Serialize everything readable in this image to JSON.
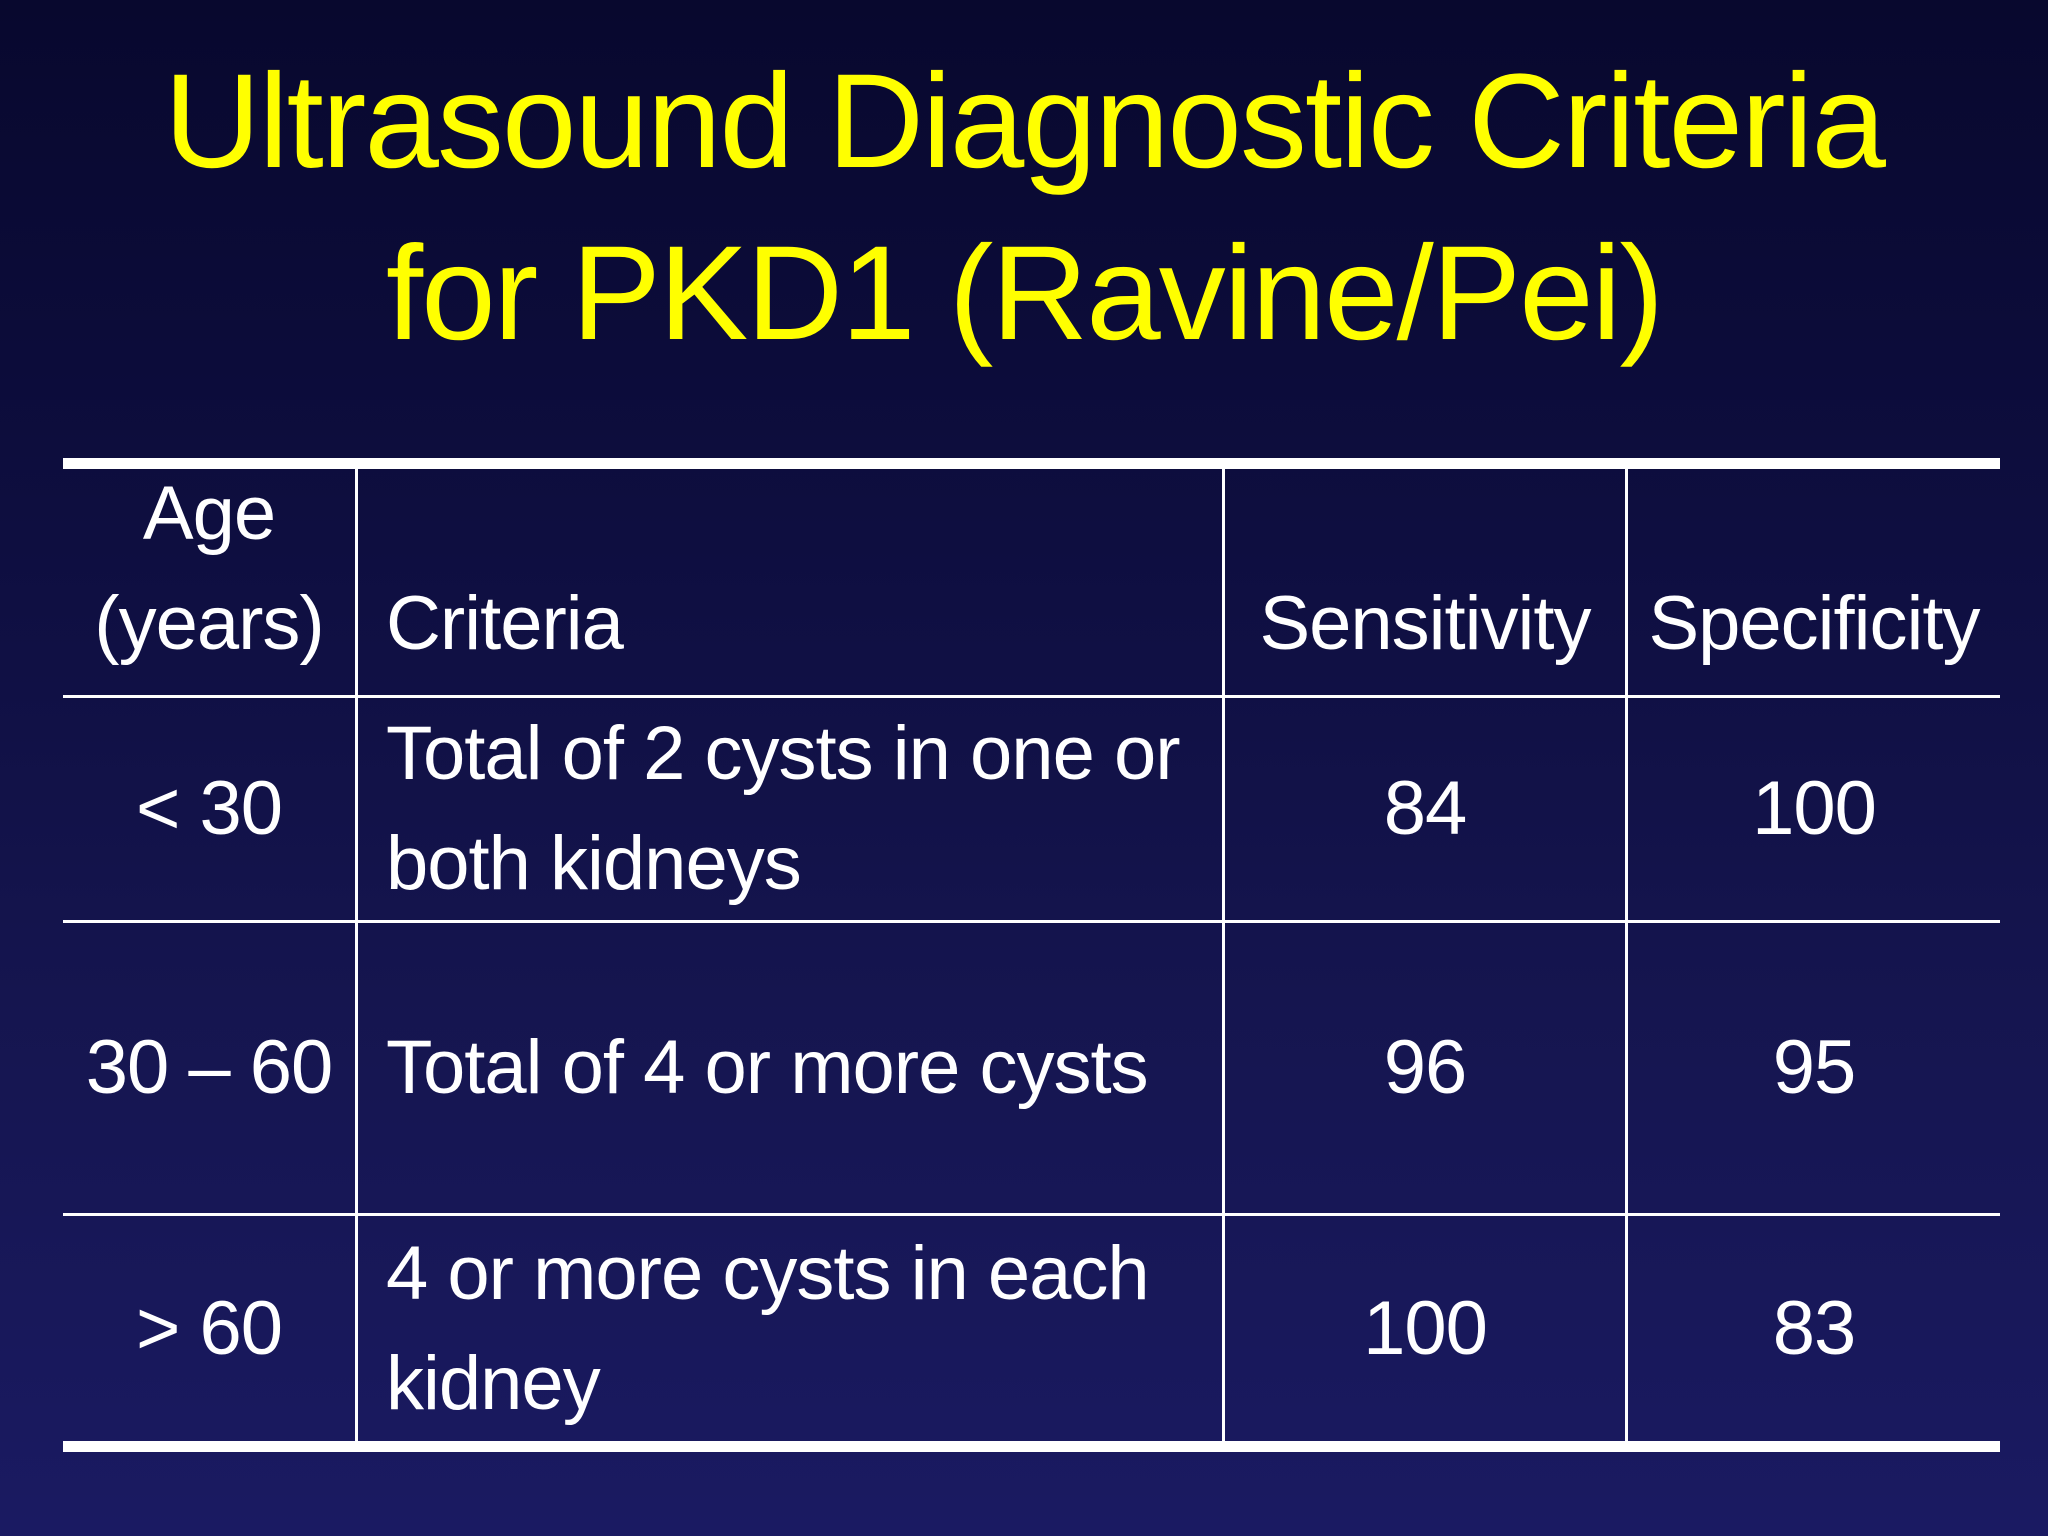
{
  "title": {
    "line1": "Ultrasound Diagnostic Criteria",
    "line2": "for PKD1 (Ravine/Pei)"
  },
  "table": {
    "headers": {
      "age_line1": "Age",
      "age_line2": "(years)",
      "criteria": "Criteria",
      "sensitivity": "Sensitivity",
      "specificity": "Specificity"
    },
    "rows": [
      {
        "age": "< 30",
        "criteria": "Total of 2 cysts in one or both kidneys",
        "sensitivity": "84",
        "specificity": "100"
      },
      {
        "age": "30 – 60",
        "criteria": "Total of 4 or more cysts",
        "sensitivity": "96",
        "specificity": "95"
      },
      {
        "age": "> 60",
        "criteria": "4 or more cysts in each kidney",
        "sensitivity": "100",
        "specificity": "83"
      }
    ]
  },
  "colors": {
    "background_top": "#08082e",
    "background_bottom": "#1a1a62",
    "title_text": "#ffff00",
    "body_text": "#ffffff",
    "table_border": "#ffffff"
  }
}
